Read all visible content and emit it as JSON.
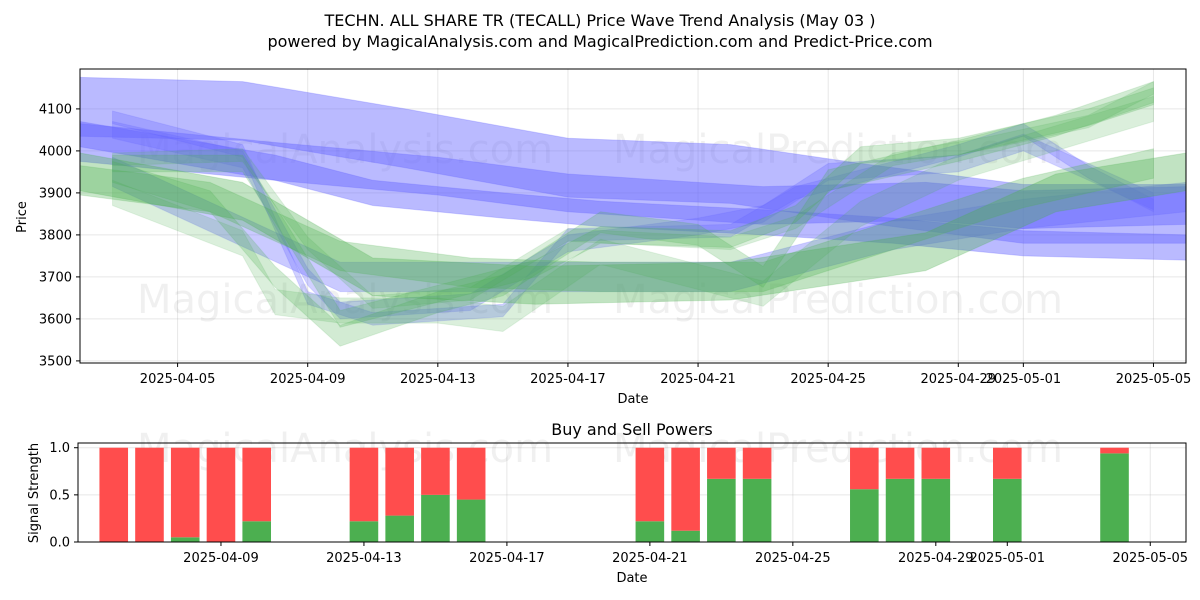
{
  "watermarks": [
    "MagicalAnalysis.com",
    "MagicalPrediction.com"
  ],
  "colors": {
    "blue": "#6666ff",
    "green": "#4caf50",
    "buy": "#4caf50",
    "sell": "#ff4d4d"
  },
  "chart_data": [
    {
      "type": "area",
      "title": "TECHN. ALL SHARE TR (TECALL) Price Wave Trend Analysis (May 03 )",
      "subtitle": "powered by MagicalAnalysis.com and MagicalPrediction.com and Predict-Price.com",
      "xlabel": "Date",
      "ylabel": "Price",
      "x_tick_labels": [
        "2025-04-05",
        "2025-04-09",
        "2025-04-13",
        "2025-04-17",
        "2025-04-21",
        "2025-04-25",
        "2025-04-29",
        "2025-05-01",
        "2025-05-05"
      ],
      "y_tick_labels": [
        "3500",
        "3600",
        "3700",
        "3800",
        "3900",
        "4000",
        "4100"
      ],
      "xlim": [
        "2025-04-02",
        "2025-05-06"
      ],
      "ylim": [
        3495,
        4195
      ],
      "grid": true,
      "series": [
        {
          "color": "blue",
          "opacity": 0.45,
          "band": 140,
          "points": [
            [
              "2025-04-02",
              4105
            ],
            [
              "2025-04-07",
              4095
            ],
            [
              "2025-04-12",
              4030
            ],
            [
              "2025-04-17",
              3960
            ],
            [
              "2025-04-22",
              3945
            ],
            [
              "2025-04-26",
              3900
            ],
            [
              "2025-05-01",
              3850
            ],
            [
              "2025-05-06",
              3850
            ]
          ]
        },
        {
          "color": "blue",
          "opacity": 0.45,
          "band": 90,
          "points": [
            [
              "2025-04-02",
              4020
            ],
            [
              "2025-04-08",
              3975
            ],
            [
              "2025-04-13",
              3940
            ],
            [
              "2025-04-17",
              3900
            ],
            [
              "2025-04-23",
              3870
            ],
            [
              "2025-04-28",
              3880
            ],
            [
              "2025-05-01",
              3860
            ],
            [
              "2025-05-06",
              3870
            ]
          ]
        },
        {
          "color": "blue",
          "opacity": 0.45,
          "band": 60,
          "points": [
            [
              "2025-04-02",
              4040
            ],
            [
              "2025-04-08",
              3960
            ],
            [
              "2025-04-11",
              3900
            ],
            [
              "2025-04-15",
              3870
            ],
            [
              "2025-04-18",
              3850
            ],
            [
              "2025-04-23",
              3830
            ],
            [
              "2025-04-27",
              3810
            ],
            [
              "2025-05-01",
              3780
            ],
            [
              "2025-05-06",
              3770
            ]
          ]
        },
        {
          "color": "blue",
          "opacity": 0.3,
          "band": 40,
          "points": [
            [
              "2025-04-03",
              4050
            ],
            [
              "2025-04-07",
              3980
            ],
            [
              "2025-04-09",
              3700
            ],
            [
              "2025-04-10",
              3620
            ],
            [
              "2025-04-14",
              3640
            ],
            [
              "2025-04-17",
              3780
            ],
            [
              "2025-04-21",
              3820
            ],
            [
              "2025-04-23",
              3850
            ],
            [
              "2025-04-25",
              3950
            ],
            [
              "2025-04-29",
              3970
            ],
            [
              "2025-05-01",
              4020
            ],
            [
              "2025-05-03",
              3950
            ],
            [
              "2025-05-05",
              3880
            ]
          ]
        },
        {
          "color": "blue",
          "opacity": 0.3,
          "band": 30,
          "points": [
            [
              "2025-04-03",
              4080
            ],
            [
              "2025-04-07",
              4000
            ],
            [
              "2025-04-09",
              3650
            ],
            [
              "2025-04-11",
              3600
            ],
            [
              "2025-04-15",
              3620
            ],
            [
              "2025-04-17",
              3800
            ],
            [
              "2025-04-22",
              3810
            ],
            [
              "2025-04-24",
              3900
            ],
            [
              "2025-04-27",
              3960
            ],
            [
              "2025-04-29",
              4000
            ],
            [
              "2025-05-01",
              4050
            ],
            [
              "2025-05-03",
              3950
            ],
            [
              "2025-05-05",
              3870
            ]
          ]
        },
        {
          "color": "blue",
          "opacity": 0.35,
          "band": 70,
          "points": [
            [
              "2025-04-03",
              3950
            ],
            [
              "2025-04-10",
              3700
            ],
            [
              "2025-04-15",
              3700
            ],
            [
              "2025-04-22",
              3700
            ],
            [
              "2025-04-27",
              3800
            ],
            [
              "2025-05-01",
              3850
            ],
            [
              "2025-05-06",
              3890
            ]
          ]
        },
        {
          "color": "green",
          "opacity": 0.35,
          "band": 90,
          "points": [
            [
              "2025-04-02",
              3950
            ],
            [
              "2025-04-07",
              3880
            ],
            [
              "2025-04-11",
              3700
            ],
            [
              "2025-04-16",
              3680
            ],
            [
              "2025-04-22",
              3690
            ],
            [
              "2025-04-28",
              3760
            ],
            [
              "2025-05-02",
              3900
            ],
            [
              "2025-05-06",
              3950
            ]
          ]
        },
        {
          "color": "green",
          "opacity": 0.3,
          "band": 70,
          "points": [
            [
              "2025-04-02",
              3930
            ],
            [
              "2025-04-06",
              3890
            ],
            [
              "2025-04-10",
              3750
            ],
            [
              "2025-04-14",
              3710
            ],
            [
              "2025-04-18",
              3700
            ],
            [
              "2025-04-23",
              3700
            ],
            [
              "2025-04-27",
              3800
            ],
            [
              "2025-05-01",
              3900
            ],
            [
              "2025-05-05",
              3970
            ]
          ]
        },
        {
          "color": "green",
          "opacity": 0.25,
          "band": 50,
          "points": [
            [
              "2025-04-03",
              3950
            ],
            [
              "2025-04-06",
              3880
            ],
            [
              "2025-04-08",
              3700
            ],
            [
              "2025-04-10",
              3560
            ],
            [
              "2025-04-13",
              3640
            ],
            [
              "2025-04-15",
              3680
            ],
            [
              "2025-04-18",
              3830
            ],
            [
              "2025-04-21",
              3800
            ],
            [
              "2025-04-23",
              3700
            ],
            [
              "2025-04-25",
              3930
            ],
            [
              "2025-04-29",
              4000
            ],
            [
              "2025-05-02",
              4060
            ],
            [
              "2025-05-05",
              4140
            ]
          ]
        },
        {
          "color": "green",
          "opacity": 0.25,
          "band": 40,
          "points": [
            [
              "2025-04-03",
              3970
            ],
            [
              "2025-04-07",
              3970
            ],
            [
              "2025-04-08",
              3850
            ],
            [
              "2025-04-10",
              3600
            ],
            [
              "2025-04-13",
              3660
            ],
            [
              "2025-04-16",
              3720
            ],
            [
              "2025-04-18",
              3800
            ],
            [
              "2025-04-22",
              3790
            ],
            [
              "2025-04-24",
              3850
            ],
            [
              "2025-04-26",
              3990
            ],
            [
              "2025-04-29",
              4010
            ],
            [
              "2025-05-03",
              4080
            ],
            [
              "2025-05-05",
              4130
            ]
          ]
        },
        {
          "color": "green",
          "opacity": 0.2,
          "band": 60,
          "points": [
            [
              "2025-04-03",
              3900
            ],
            [
              "2025-04-07",
              3780
            ],
            [
              "2025-04-08",
              3640
            ],
            [
              "2025-04-10",
              3620
            ],
            [
              "2025-04-13",
              3620
            ],
            [
              "2025-04-15",
              3600
            ],
            [
              "2025-04-18",
              3760
            ],
            [
              "2025-04-21",
              3700
            ],
            [
              "2025-04-23",
              3660
            ],
            [
              "2025-04-26",
              3850
            ],
            [
              "2025-04-29",
              3960
            ],
            [
              "2025-05-02",
              4030
            ],
            [
              "2025-05-05",
              4100
            ]
          ]
        },
        {
          "color": "green",
          "opacity": 0.2,
          "band": 30,
          "points": [
            [
              "2025-04-03",
              3980
            ],
            [
              "2025-04-07",
              3990
            ],
            [
              "2025-04-09",
              3780
            ],
            [
              "2025-04-11",
              3640
            ],
            [
              "2025-04-14",
              3660
            ],
            [
              "2025-04-17",
              3800
            ],
            [
              "2025-04-22",
              3780
            ],
            [
              "2025-04-24",
              3830
            ],
            [
              "2025-04-27",
              3980
            ],
            [
              "2025-04-30",
              4020
            ],
            [
              "2025-05-03",
              4070
            ],
            [
              "2025-05-05",
              4150
            ]
          ]
        }
      ]
    },
    {
      "type": "bar",
      "title": "Buy and Sell Powers",
      "xlabel": "Date",
      "ylabel": "Signal Strength",
      "x_tick_labels": [
        "2025-04-09",
        "2025-04-13",
        "2025-04-17",
        "2025-04-21",
        "2025-04-25",
        "2025-04-29",
        "2025-05-01",
        "2025-05-05"
      ],
      "y_tick_labels": [
        "0.0",
        "0.5",
        "1.0"
      ],
      "xlim": [
        "2025-04-05",
        "2025-05-06"
      ],
      "ylim": [
        0,
        1.05
      ],
      "grid": true,
      "stack": [
        "buy",
        "sell"
      ],
      "bars": [
        {
          "date": "2025-04-06",
          "buy": 0.0,
          "sell": 1.0
        },
        {
          "date": "2025-04-07",
          "buy": 0.0,
          "sell": 1.0
        },
        {
          "date": "2025-04-08",
          "buy": 0.05,
          "sell": 0.95
        },
        {
          "date": "2025-04-09",
          "buy": 0.0,
          "sell": 1.0
        },
        {
          "date": "2025-04-10",
          "buy": 0.22,
          "sell": 0.78
        },
        {
          "date": "2025-04-13",
          "buy": 0.22,
          "sell": 0.78
        },
        {
          "date": "2025-04-14",
          "buy": 0.28,
          "sell": 0.72
        },
        {
          "date": "2025-04-15",
          "buy": 0.5,
          "sell": 0.5
        },
        {
          "date": "2025-04-16",
          "buy": 0.45,
          "sell": 0.55
        },
        {
          "date": "2025-04-21",
          "buy": 0.22,
          "sell": 0.78
        },
        {
          "date": "2025-04-22",
          "buy": 0.12,
          "sell": 0.88
        },
        {
          "date": "2025-04-23",
          "buy": 0.67,
          "sell": 0.33
        },
        {
          "date": "2025-04-24",
          "buy": 0.67,
          "sell": 0.33
        },
        {
          "date": "2025-04-27",
          "buy": 0.56,
          "sell": 0.44
        },
        {
          "date": "2025-04-28",
          "buy": 0.67,
          "sell": 0.33
        },
        {
          "date": "2025-04-29",
          "buy": 0.67,
          "sell": 0.33
        },
        {
          "date": "2025-05-01",
          "buy": 0.67,
          "sell": 0.33
        },
        {
          "date": "2025-05-04",
          "buy": 0.94,
          "sell": 0.06
        }
      ]
    }
  ]
}
